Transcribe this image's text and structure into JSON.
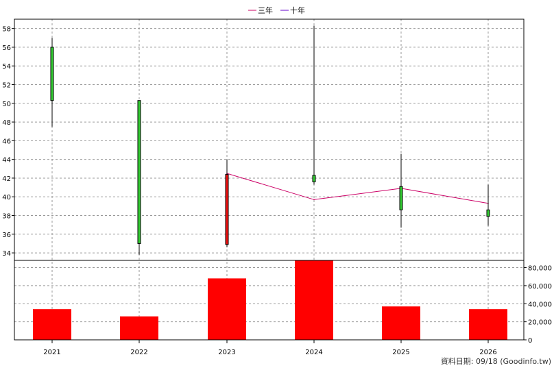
{
  "chart_data": {
    "type": "candlestick",
    "legend": [
      {
        "label": "三年",
        "color": "#cc0066"
      },
      {
        "label": "十年",
        "color": "#6600cc"
      }
    ],
    "categories": [
      "2021",
      "2022",
      "2023",
      "2024",
      "2025",
      "2026"
    ],
    "price_axis": {
      "ticks": [
        "58",
        "56",
        "54",
        "52",
        "50",
        "48",
        "46",
        "44",
        "42",
        "40",
        "38",
        "36",
        "34"
      ],
      "min": 33.2,
      "max": 59.0
    },
    "candles": [
      {
        "year": "2021",
        "open": 50.3,
        "close": 56.0,
        "high": 57.0,
        "low": 47.5,
        "color": "#33cc33"
      },
      {
        "year": "2022",
        "open": 35.0,
        "close": 50.3,
        "high": 50.3,
        "low": 33.8,
        "color": "#33cc33"
      },
      {
        "year": "2023",
        "open": 42.4,
        "close": 34.9,
        "high": 44.0,
        "low": 34.6,
        "color": "#ee1111"
      },
      {
        "year": "2024",
        "open": 41.6,
        "close": 42.3,
        "high": 58.3,
        "low": 41.3,
        "color": "#33cc33"
      },
      {
        "year": "2025",
        "open": 38.6,
        "close": 41.1,
        "high": 44.6,
        "low": 36.7,
        "color": "#33cc33"
      },
      {
        "year": "2026",
        "open": 37.9,
        "close": 38.6,
        "high": 41.3,
        "low": 36.9,
        "color": "#33cc33"
      }
    ],
    "three_year_line": [
      {
        "year": "2023",
        "value": 42.5
      },
      {
        "year": "2024",
        "value": 39.7
      },
      {
        "year": "2025",
        "value": 40.9
      },
      {
        "year": "2026",
        "value": 39.3
      }
    ],
    "volume_axis": {
      "ticks": [
        "80,000",
        "60,000",
        "40,000",
        "20,000",
        "0"
      ],
      "max": 88000
    },
    "volume": [
      {
        "year": "2021",
        "value": 34000
      },
      {
        "year": "2022",
        "value": 26000
      },
      {
        "year": "2023",
        "value": 68000
      },
      {
        "year": "2024",
        "value": 89000
      },
      {
        "year": "2025",
        "value": 37000
      },
      {
        "year": "2026",
        "value": 34000
      }
    ],
    "grid": true,
    "legend_position": "top-center"
  },
  "credit": "資料日期: 09/18 (Goodinfo.tw)"
}
